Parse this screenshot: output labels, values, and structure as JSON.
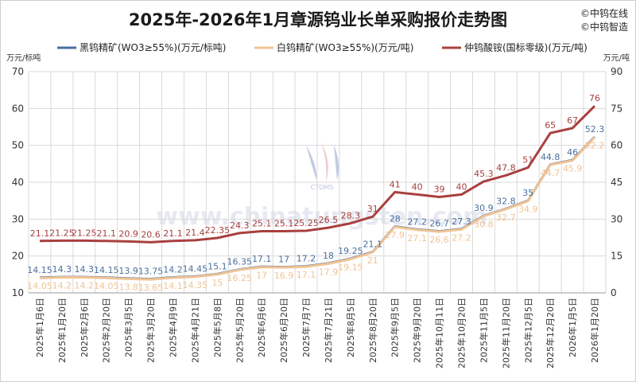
{
  "chart_data": {
    "type": "line",
    "title": "2025年-2026年1月章源钨业长单采购报价走势图",
    "brand_lines": [
      "©中钨在线",
      "©中钨智造"
    ],
    "watermark": {
      "text": "www.chinatungsten.com",
      "logo_text": "CTOMS"
    },
    "left_axis": {
      "unit": "万元/标吨",
      "ylim": [
        10,
        70
      ],
      "ticks": [
        "10",
        "20",
        "30",
        "40",
        "50",
        "60",
        "70"
      ]
    },
    "right_axis": {
      "unit": "万元/吨",
      "ylim": [
        0,
        90
      ],
      "ticks": [
        "0",
        "15",
        "30",
        "45",
        "60",
        "75",
        "90"
      ]
    },
    "categories": [
      "2025年1月6日",
      "2025年1月20日",
      "2025年2月6日",
      "2025年2月20日",
      "2025年3月5日",
      "2025年3月20日",
      "2025年4月9日",
      "2025年4月21日",
      "2025年5月8日",
      "2025年5月20日",
      "2025年6月6日",
      "2025年6月20日",
      "2025年7月7日",
      "2025年7月21日",
      "2025年8月5日",
      "2025年8月20日",
      "2025年9月5日",
      "2025年9月20日",
      "2025年10月11日",
      "2025年10月20日",
      "2025年11月5日",
      "2025年11月20日",
      "2025年12月5日",
      "2025年12月20日",
      "2026年1月5日",
      "2026年1月20日"
    ],
    "series": [
      {
        "name": "黑钨精矿(WO3≥55%)(万元/标吨)",
        "color": "#4a6f9e",
        "axis": "left",
        "values": [
          14.15,
          14.3,
          14.3,
          14.15,
          13.9,
          13.75,
          14.2,
          14.45,
          15.1,
          16.35,
          17.1,
          17,
          17.2,
          18,
          19.25,
          21.1,
          28,
          27.2,
          26.7,
          27.3,
          30.9,
          32.8,
          35,
          44.8,
          46,
          52.3
        ],
        "labels": [
          "14.15",
          "14.3",
          "14.3",
          "14.15",
          "13.9",
          "13.75",
          "14.2",
          "14.45",
          "15.1",
          "16.35",
          "17.1",
          "17",
          "17.2",
          "18",
          "19.25",
          "21.1",
          "28",
          "27.2",
          "26.7",
          "27.3",
          "30.9",
          "32.8",
          "35",
          "44.8",
          "46",
          "52.3"
        ]
      },
      {
        "name": "白钨精矿(WO3≥55%)(万元/吨)",
        "color": "#f0c394",
        "axis": "left",
        "values": [
          14.05,
          14.2,
          14.2,
          14.05,
          13.8,
          13.65,
          14.1,
          14.35,
          15,
          16.25,
          17,
          16.9,
          17.1,
          17.9,
          19.15,
          21,
          27.9,
          27.1,
          26.6,
          27.2,
          30.8,
          32.7,
          34.9,
          44.7,
          45.9,
          52.2
        ],
        "labels": [
          "14.05",
          "14.2",
          "14.2",
          "14.05",
          "13.8",
          "13.65",
          "14.1",
          "14.35",
          "15",
          "16.25",
          "17",
          "16.9",
          "17.1",
          "17.9",
          "19.15",
          "21",
          "27.9",
          "27.1",
          "26.6",
          "27.2",
          "30.8",
          "32.7",
          "34.9",
          "44.7",
          "45.9",
          "52.2"
        ]
      },
      {
        "name": "仲钨酸铵(国标零级)(万元/吨)",
        "color": "#a8403f",
        "axis": "right",
        "values": [
          21.1,
          21.25,
          21.25,
          21.1,
          20.9,
          20.6,
          21.1,
          21.4,
          22.35,
          24.3,
          25.1,
          25.1,
          25.25,
          26.5,
          28.3,
          31,
          41,
          40,
          39,
          40,
          45.3,
          47.8,
          51,
          65,
          67,
          76
        ],
        "labels": [
          "21.1",
          "21.25",
          "21.25",
          "21.1",
          "20.9",
          "20.6",
          "21.1",
          "21.4",
          "22.35",
          "24.3",
          "25.1",
          "25.1",
          "25.25",
          "26.5",
          "28.3",
          "31",
          "41",
          "40",
          "39",
          "40",
          "45.3",
          "47.8",
          "51",
          "65",
          "67",
          "76"
        ]
      }
    ],
    "grid": true,
    "legend_position": "top"
  }
}
